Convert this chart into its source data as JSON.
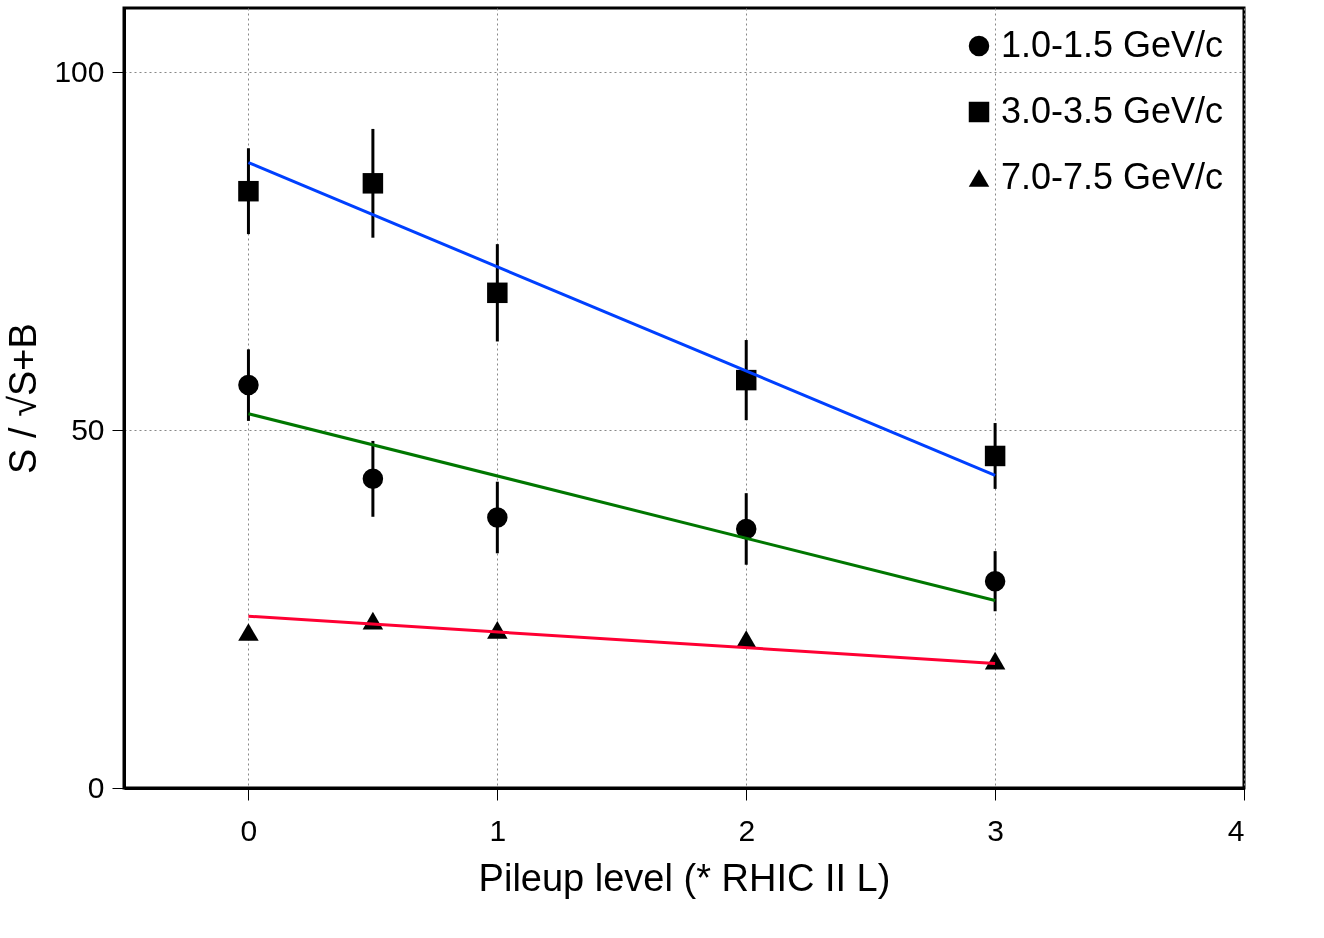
{
  "chart_data": {
    "type": "scatter",
    "xlabel": "Pileup level (* RHIC II L)",
    "ylabel": "S / √S+B",
    "xlim": [
      -0.5,
      4
    ],
    "xticks": [
      0,
      1,
      2,
      3,
      4
    ],
    "ylim": [
      0,
      109
    ],
    "yticks": [
      0,
      50,
      100
    ],
    "grid": true,
    "legend": "top right",
    "series": [
      {
        "name": "1.0-1.5 GeV/c",
        "marker": "circle",
        "color": "#000000",
        "x": [
          0,
          0.5,
          1,
          2,
          3
        ],
        "values": [
          56.3,
          43.2,
          37.8,
          36.2,
          28.9
        ],
        "errors": [
          5,
          5.3,
          5,
          5,
          4.2
        ]
      },
      {
        "name": "3.0-3.5 GeV/c",
        "marker": "square",
        "color": "#000000",
        "x": [
          0,
          0.5,
          1,
          2,
          3
        ],
        "values": [
          83.4,
          84.5,
          69.2,
          57,
          46.4
        ],
        "errors": [
          6,
          7.6,
          6.8,
          5.6,
          4.6
        ]
      },
      {
        "name": "7.0-7.5 GeV/c",
        "marker": "triangle",
        "color": "#000000",
        "x": [
          0,
          0.5,
          1,
          2,
          3
        ],
        "values": [
          21.8,
          23.4,
          22.1,
          20.8,
          17.8
        ]
      },
      {
        "type": "line",
        "color": "#0040ff",
        "x": [
          0,
          3
        ],
        "values": [
          87.4,
          43.7
        ]
      },
      {
        "type": "line",
        "color": "#007700",
        "x": [
          0,
          3
        ],
        "values": [
          52.3,
          26.2
        ]
      },
      {
        "type": "line",
        "color": "#ff0033",
        "x": [
          0,
          3
        ],
        "values": [
          24,
          17.4
        ]
      }
    ]
  }
}
